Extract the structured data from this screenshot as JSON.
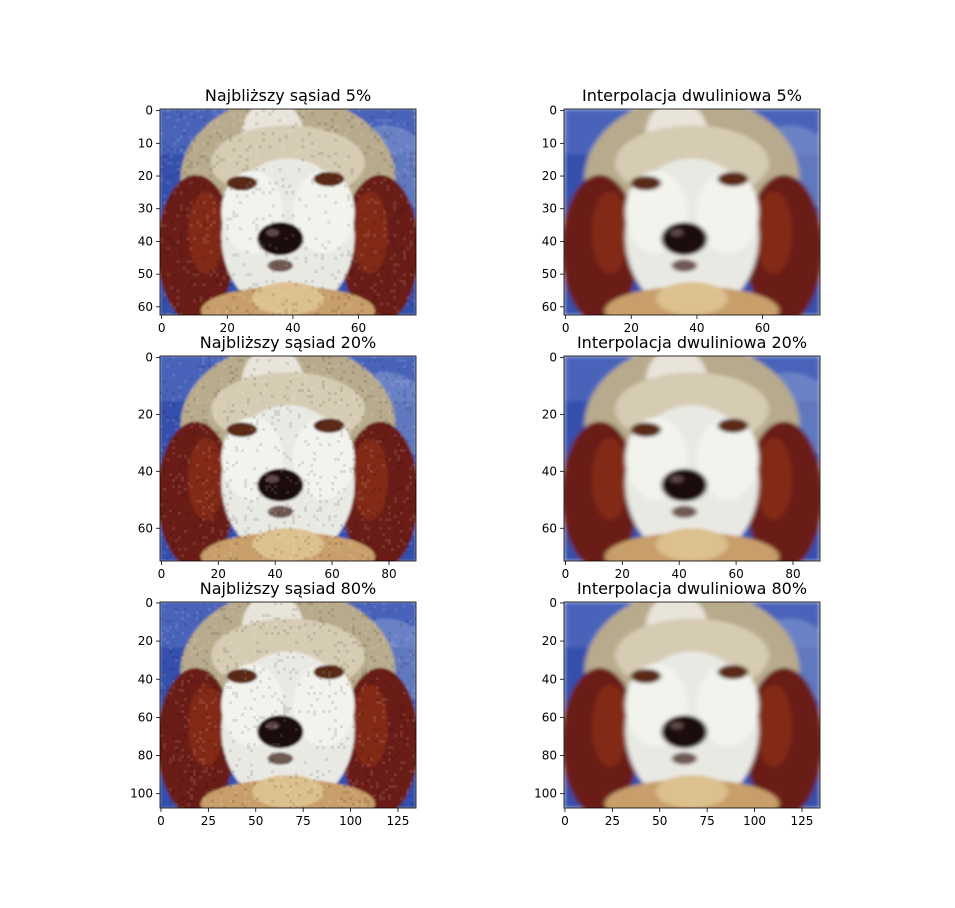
{
  "figure": {
    "panels": [
      {
        "title": "Najbliższy sąsiad 5%",
        "method": "nearest",
        "width": 78,
        "height": 63,
        "xticks": [
          0,
          20,
          40,
          60
        ],
        "yticks": [
          0,
          10,
          20,
          30,
          40,
          50,
          60
        ]
      },
      {
        "title": "Interpolacja dwuliniowa 5%",
        "method": "bilinear",
        "width": 78,
        "height": 63,
        "xticks": [
          0,
          20,
          40,
          60
        ],
        "yticks": [
          0,
          10,
          20,
          30,
          40,
          50,
          60
        ]
      },
      {
        "title": "Najbliższy sąsiad 20%",
        "method": "nearest",
        "width": 90,
        "height": 72,
        "xticks": [
          0,
          20,
          40,
          60,
          80
        ],
        "yticks": [
          0,
          20,
          40,
          60
        ]
      },
      {
        "title": "Interpolacja dwuliniowa 20%",
        "method": "bilinear",
        "width": 90,
        "height": 72,
        "xticks": [
          0,
          20,
          40,
          60,
          80
        ],
        "yticks": [
          0,
          20,
          40,
          60
        ]
      },
      {
        "title": "Najbliższy sąsiad 80%",
        "method": "nearest",
        "width": 135,
        "height": 108,
        "xticks": [
          0,
          25,
          50,
          75,
          100,
          125
        ],
        "yticks": [
          0,
          20,
          40,
          60,
          80,
          100
        ]
      },
      {
        "title": "Interpolacja dwuliniowa 80%",
        "method": "bilinear",
        "width": 135,
        "height": 108,
        "xticks": [
          0,
          25,
          50,
          75,
          100,
          125
        ],
        "yticks": [
          0,
          20,
          40,
          60,
          80,
          100
        ]
      }
    ],
    "colors": {
      "background_blue": "#2e4aa8",
      "fur_brown": "#6a1a12",
      "fur_white": "#e6e6e0",
      "fur_tan": "#c8a878",
      "nose": "#1a0a0a"
    }
  }
}
